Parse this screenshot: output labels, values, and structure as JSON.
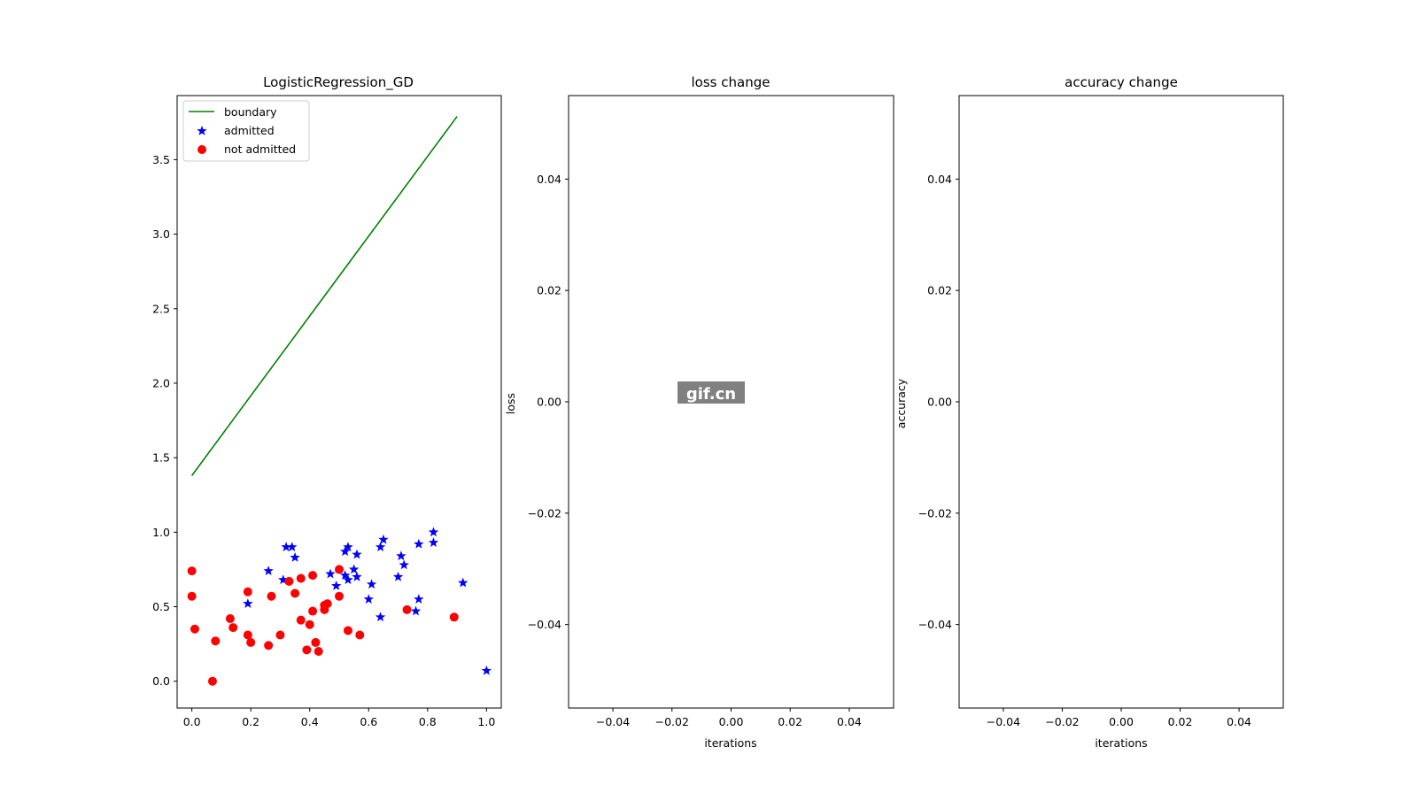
{
  "watermark": "gif.cn",
  "chart_data": [
    {
      "type": "scatter",
      "title": "LogisticRegression_GD",
      "xlabel": "",
      "ylabel": "",
      "xlim": [
        -0.05,
        1.05
      ],
      "ylim": [
        -0.18,
        3.93
      ],
      "xticks": [
        0.0,
        0.2,
        0.4,
        0.6,
        0.8,
        1.0
      ],
      "xtick_labels": [
        "0.0",
        "0.2",
        "0.4",
        "0.6",
        "0.8",
        "1.0"
      ],
      "yticks": [
        0.0,
        0.5,
        1.0,
        1.5,
        2.0,
        2.5,
        3.0,
        3.5
      ],
      "ytick_labels": [
        "0.0",
        "0.5",
        "1.0",
        "1.5",
        "2.0",
        "2.5",
        "3.0",
        "3.5"
      ],
      "legend_position": "top-left",
      "grid": false,
      "series": [
        {
          "name": "boundary",
          "type": "line",
          "color": "#008000",
          "x": [
            0.0,
            0.9
          ],
          "y": [
            1.38,
            3.79
          ]
        },
        {
          "name": "admitted",
          "type": "scatter",
          "marker": "star",
          "color": "#0000ff",
          "x": [
            0.26,
            0.31,
            0.32,
            0.34,
            0.35,
            0.19,
            0.47,
            0.49,
            0.52,
            0.52,
            0.53,
            0.53,
            0.55,
            0.56,
            0.56,
            0.6,
            0.61,
            0.64,
            0.64,
            0.65,
            0.7,
            0.71,
            0.72,
            0.76,
            0.77,
            0.77,
            0.82,
            0.82,
            0.92,
            1.0
          ],
          "y": [
            0.74,
            0.68,
            0.9,
            0.9,
            0.83,
            0.52,
            0.72,
            0.64,
            0.71,
            0.87,
            0.9,
            0.68,
            0.75,
            0.7,
            0.85,
            0.55,
            0.65,
            0.43,
            0.9,
            0.95,
            0.7,
            0.84,
            0.78,
            0.47,
            0.55,
            0.92,
            0.93,
            1.0,
            0.66,
            0.07
          ]
        },
        {
          "name": "not admitted",
          "type": "scatter",
          "marker": "circle",
          "color": "#ff0000",
          "x": [
            0.0,
            0.0,
            0.01,
            0.07,
            0.08,
            0.13,
            0.14,
            0.19,
            0.19,
            0.2,
            0.26,
            0.27,
            0.3,
            0.33,
            0.35,
            0.37,
            0.37,
            0.39,
            0.4,
            0.41,
            0.41,
            0.42,
            0.43,
            0.45,
            0.45,
            0.46,
            0.5,
            0.5,
            0.53,
            0.57,
            0.73,
            0.89
          ],
          "y": [
            0.74,
            0.57,
            0.35,
            0.0,
            0.27,
            0.42,
            0.36,
            0.6,
            0.31,
            0.26,
            0.24,
            0.57,
            0.31,
            0.67,
            0.59,
            0.41,
            0.69,
            0.21,
            0.38,
            0.71,
            0.47,
            0.26,
            0.2,
            0.48,
            0.51,
            0.52,
            0.75,
            0.57,
            0.34,
            0.31,
            0.48,
            0.43
          ]
        }
      ]
    },
    {
      "type": "line",
      "title": "loss change",
      "xlabel": "iterations",
      "ylabel": "loss",
      "xlim": [
        -0.055,
        0.055
      ],
      "ylim": [
        -0.055,
        0.055
      ],
      "xticks": [
        -0.04,
        -0.02,
        0.0,
        0.02,
        0.04
      ],
      "xtick_labels": [
        "−0.04",
        "−0.02",
        "0.00",
        "0.02",
        "0.04"
      ],
      "yticks": [
        -0.04,
        -0.02,
        0.0,
        0.02,
        0.04
      ],
      "ytick_labels": [
        "−0.04",
        "−0.02",
        "0.00",
        "0.02",
        "0.04"
      ],
      "grid": false,
      "series": []
    },
    {
      "type": "line",
      "title": "accuracy change",
      "xlabel": "iterations",
      "ylabel": "accuracy",
      "xlim": [
        -0.055,
        0.055
      ],
      "ylim": [
        -0.055,
        0.055
      ],
      "xticks": [
        -0.04,
        -0.02,
        0.0,
        0.02,
        0.04
      ],
      "xtick_labels": [
        "−0.04",
        "−0.02",
        "0.00",
        "0.02",
        "0.04"
      ],
      "yticks": [
        -0.04,
        -0.02,
        0.0,
        0.02,
        0.04
      ],
      "ytick_labels": [
        "−0.04",
        "−0.02",
        "0.00",
        "0.02",
        "0.04"
      ],
      "grid": false,
      "series": []
    }
  ]
}
